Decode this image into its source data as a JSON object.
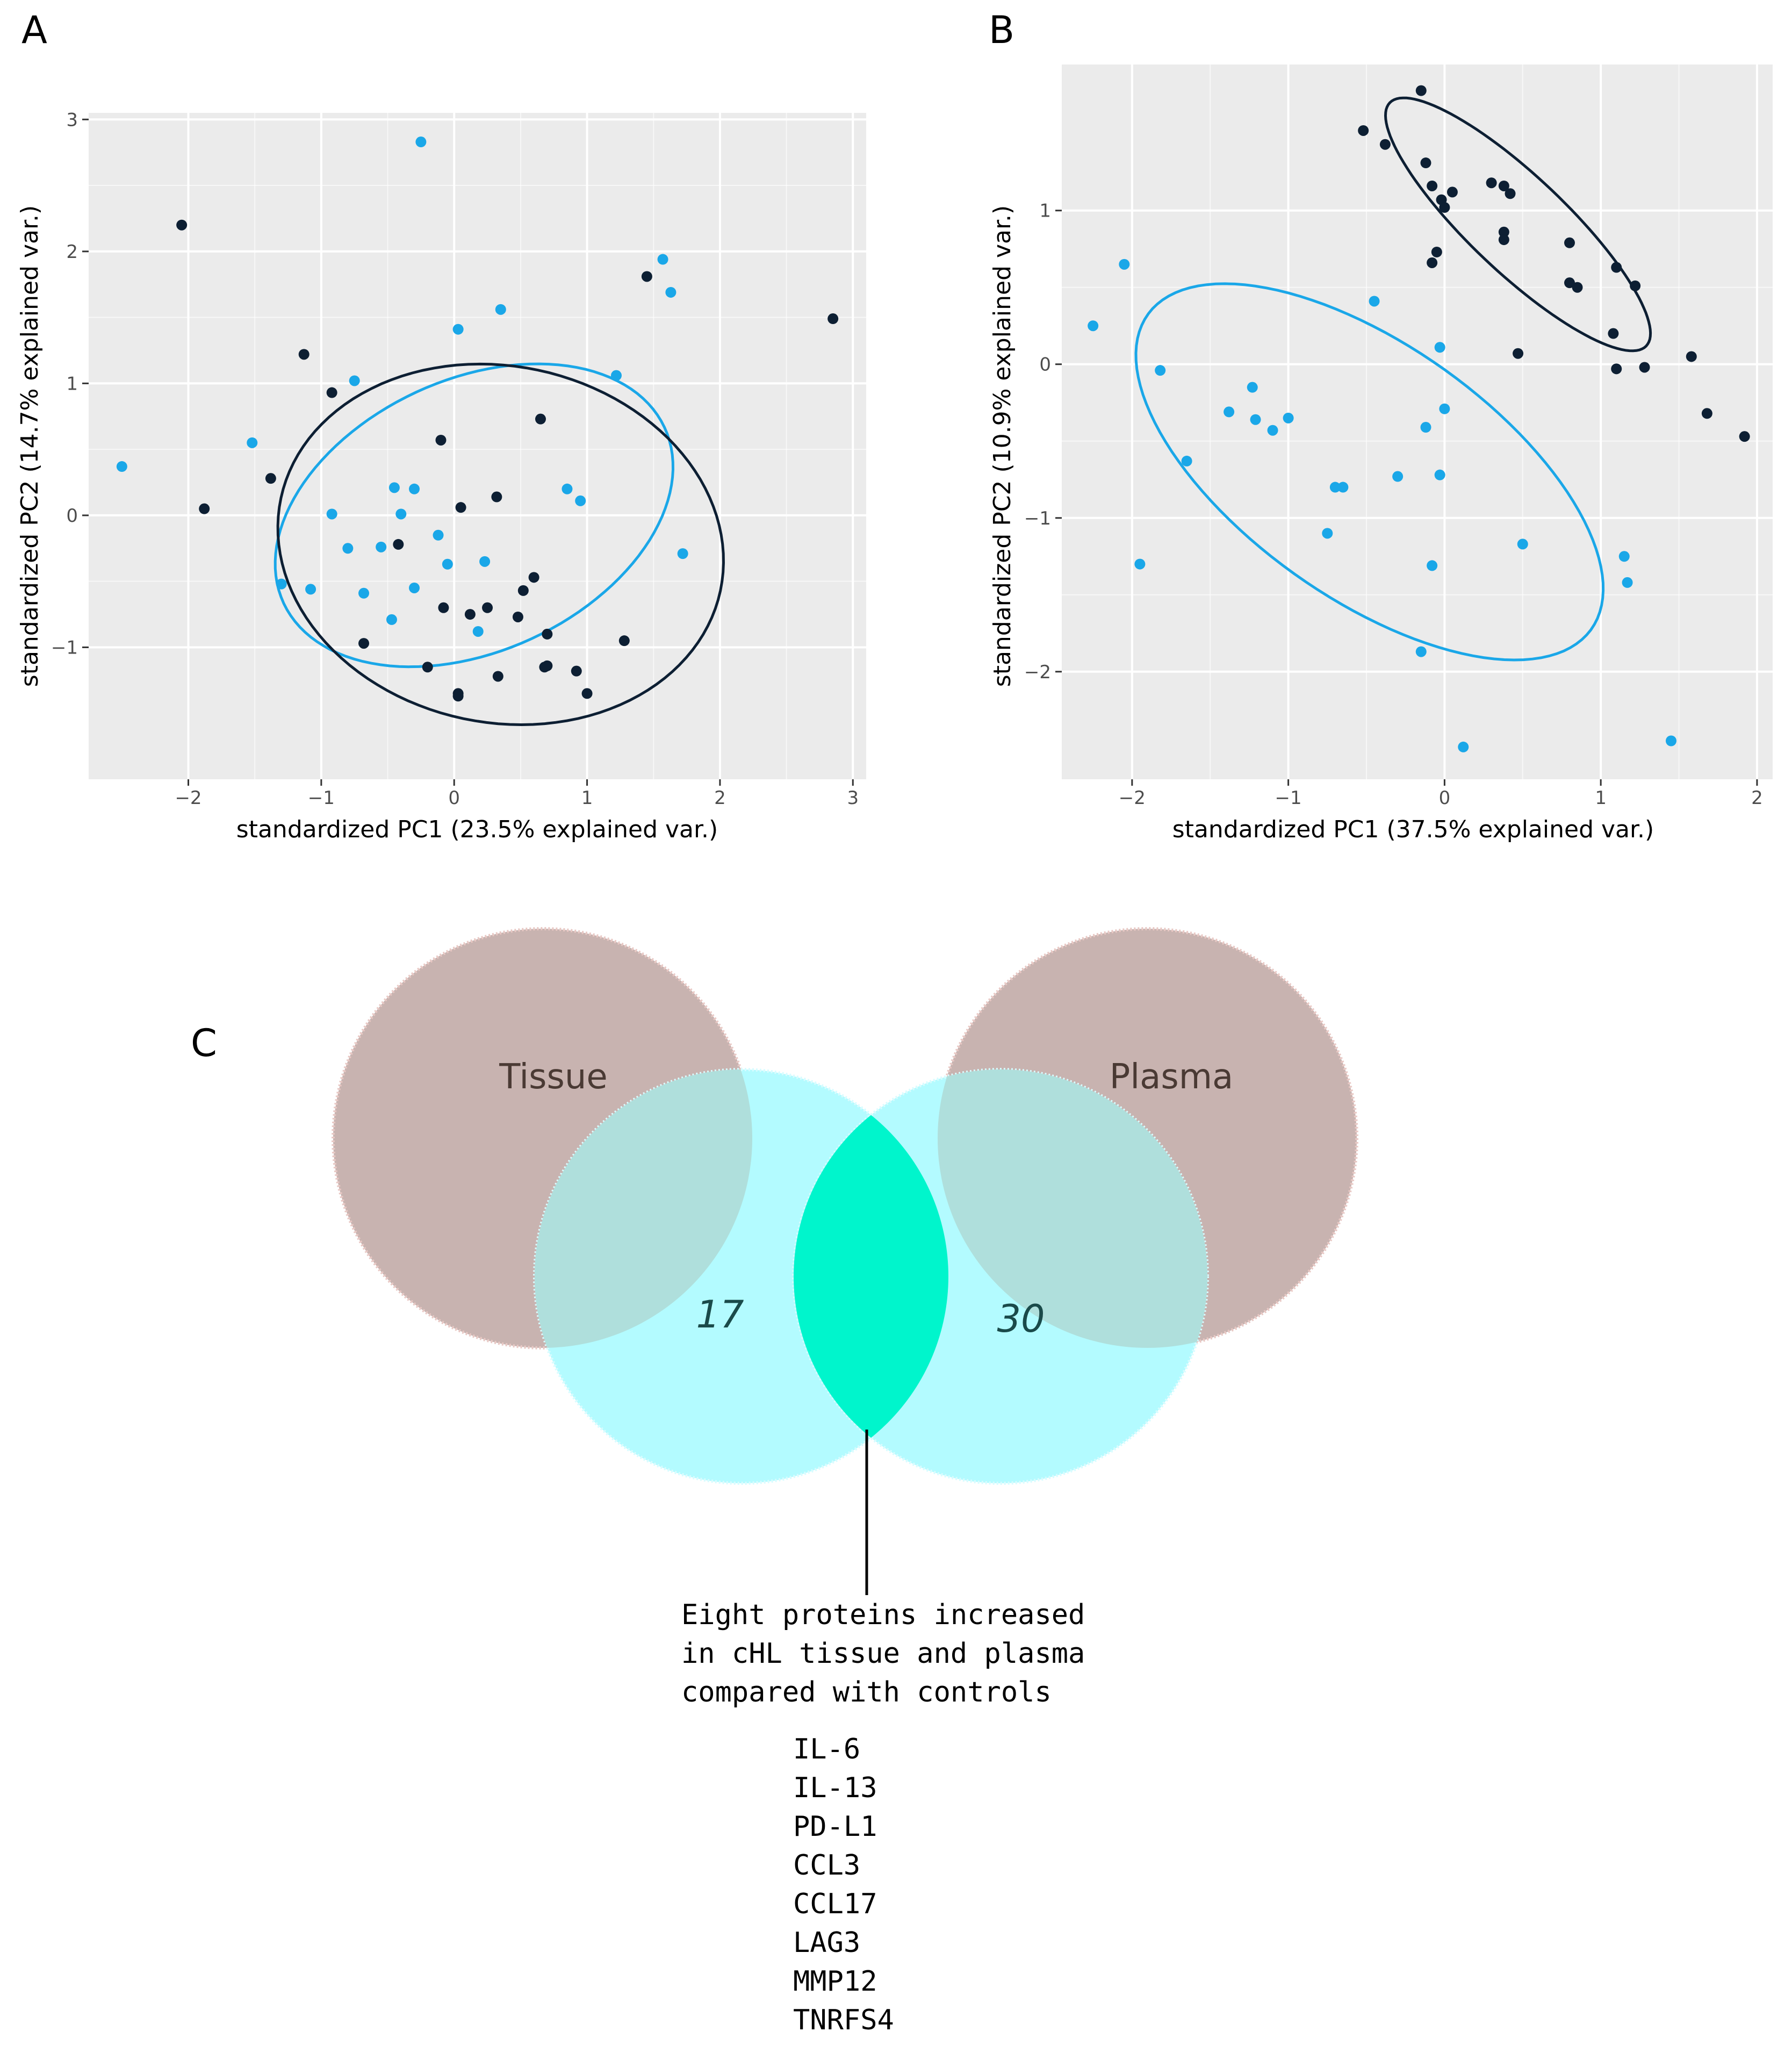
{
  "colors": {
    "panel_bg": "#ebebeb",
    "grid": "#ffffff",
    "group_dark": "#0d1f33",
    "group_light": "#1aa7e8",
    "venn_brown": "#c8b3b0",
    "venn_cyan": "#b3fbff",
    "venn_center": "#00f5cc",
    "venn_overlap": "#afdfdc"
  },
  "chart_data": [
    {
      "panel": "A",
      "type": "scatter",
      "xlabel": "standardized PC1 (23.5% explained var.)",
      "ylabel": "standardized PC2 (14.7% explained var.)",
      "xlim": [
        -2.75,
        3.1
      ],
      "ylim": [
        -2.0,
        3.05
      ],
      "xticks": [
        -2,
        -1,
        0,
        1,
        2,
        3
      ],
      "xtick_labels": [
        "−2",
        "−1",
        "0",
        "1",
        "2",
        "3"
      ],
      "yticks": [
        -1,
        0,
        1,
        2,
        3
      ],
      "ytick_labels": [
        "−1",
        "0",
        "1",
        "2",
        "3"
      ],
      "series": [
        {
          "name": "dark",
          "color": "#0d1f33",
          "points": [
            [
              -2.05,
              2.2
            ],
            [
              -1.88,
              0.05
            ],
            [
              -1.38,
              0.28
            ],
            [
              -1.13,
              1.22
            ],
            [
              -0.92,
              0.93
            ],
            [
              -0.68,
              -0.97
            ],
            [
              -0.42,
              -0.22
            ],
            [
              -0.2,
              -1.15
            ],
            [
              -0.1,
              0.57
            ],
            [
              -0.08,
              -0.7
            ],
            [
              0.05,
              0.06
            ],
            [
              0.03,
              -1.35
            ],
            [
              0.03,
              -1.37
            ],
            [
              0.12,
              -0.75
            ],
            [
              0.25,
              -0.7
            ],
            [
              0.32,
              0.14
            ],
            [
              0.33,
              -1.22
            ],
            [
              0.48,
              -0.77
            ],
            [
              0.52,
              -0.57
            ],
            [
              0.6,
              -0.47
            ],
            [
              0.65,
              0.73
            ],
            [
              0.68,
              -1.15
            ],
            [
              0.7,
              -1.14
            ],
            [
              0.7,
              -0.9
            ],
            [
              0.92,
              -1.18
            ],
            [
              1.0,
              -1.35
            ],
            [
              1.28,
              -0.95
            ],
            [
              1.45,
              1.81
            ],
            [
              2.85,
              1.49
            ]
          ]
        },
        {
          "name": "light",
          "color": "#1aa7e8",
          "points": [
            [
              -2.5,
              0.37
            ],
            [
              -1.52,
              0.55
            ],
            [
              -1.3,
              -0.52
            ],
            [
              -1.08,
              -0.56
            ],
            [
              -0.92,
              0.01
            ],
            [
              -0.8,
              -0.25
            ],
            [
              -0.75,
              1.02
            ],
            [
              -0.68,
              -0.59
            ],
            [
              -0.55,
              -0.24
            ],
            [
              -0.47,
              -0.79
            ],
            [
              -0.45,
              0.21
            ],
            [
              -0.4,
              0.01
            ],
            [
              -0.3,
              0.2
            ],
            [
              -0.3,
              -0.55
            ],
            [
              -0.25,
              2.83
            ],
            [
              -0.12,
              -0.15
            ],
            [
              -0.05,
              -0.37
            ],
            [
              0.03,
              1.41
            ],
            [
              0.18,
              -0.88
            ],
            [
              0.23,
              -0.35
            ],
            [
              0.35,
              1.56
            ],
            [
              0.85,
              0.2
            ],
            [
              0.95,
              0.11
            ],
            [
              1.22,
              1.06
            ],
            [
              1.57,
              1.94
            ],
            [
              1.63,
              1.69
            ],
            [
              1.72,
              -0.29
            ]
          ]
        }
      ],
      "ellipses": [
        {
          "name": "light",
          "color": "#1aa7e8",
          "center": [
            0.15,
            0.0
          ],
          "a": 1.58,
          "b": 1.03,
          "angle_deg": 25
        },
        {
          "name": "dark",
          "color": "#0d1f33",
          "center": [
            0.35,
            -0.22
          ],
          "a": 1.69,
          "b": 1.35,
          "angle_deg": -12
        }
      ]
    },
    {
      "panel": "B",
      "type": "scatter",
      "xlabel": "standardized PC1 (37.5% explained var.)",
      "ylabel": "standardized PC2 (10.9% explained var.)",
      "xlim": [
        -2.45,
        2.1
      ],
      "ylim": [
        -2.7,
        1.95
      ],
      "xticks": [
        -2,
        -1,
        0,
        1,
        2
      ],
      "xtick_labels": [
        "−2",
        "−1",
        "0",
        "1",
        "2"
      ],
      "yticks": [
        -2,
        -1,
        0,
        1
      ],
      "ytick_labels": [
        "−2",
        "−1",
        "0",
        "1"
      ],
      "series": [
        {
          "name": "dark",
          "color": "#0d1f33",
          "points": [
            [
              -0.52,
              1.52
            ],
            [
              -0.38,
              1.43
            ],
            [
              -0.15,
              1.78
            ],
            [
              -0.12,
              1.31
            ],
            [
              -0.08,
              1.16
            ],
            [
              -0.08,
              0.66
            ],
            [
              -0.05,
              0.73
            ],
            [
              -0.02,
              1.07
            ],
            [
              0.0,
              1.02
            ],
            [
              0.05,
              1.12
            ],
            [
              0.3,
              1.18
            ],
            [
              0.38,
              0.86
            ],
            [
              0.38,
              0.81
            ],
            [
              0.38,
              1.16
            ],
            [
              0.42,
              1.11
            ],
            [
              0.47,
              0.07
            ],
            [
              0.8,
              0.79
            ],
            [
              0.8,
              0.53
            ],
            [
              0.85,
              0.5
            ],
            [
              1.08,
              0.2
            ],
            [
              1.1,
              0.63
            ],
            [
              1.1,
              -0.03
            ],
            [
              1.22,
              0.51
            ],
            [
              1.28,
              -0.02
            ],
            [
              1.58,
              0.05
            ],
            [
              1.68,
              -0.32
            ],
            [
              1.92,
              -0.47
            ]
          ]
        },
        {
          "name": "light",
          "color": "#1aa7e8",
          "points": [
            [
              -2.25,
              0.25
            ],
            [
              -2.05,
              0.65
            ],
            [
              -1.95,
              -1.3
            ],
            [
              -1.82,
              -0.04
            ],
            [
              -1.65,
              -0.63
            ],
            [
              -1.38,
              -0.31
            ],
            [
              -1.23,
              -0.15
            ],
            [
              -1.21,
              -0.36
            ],
            [
              -1.1,
              -0.43
            ],
            [
              -1.0,
              -0.35
            ],
            [
              -0.75,
              -1.1
            ],
            [
              -0.7,
              -0.8
            ],
            [
              -0.65,
              -0.8
            ],
            [
              -0.45,
              0.41
            ],
            [
              -0.3,
              -0.73
            ],
            [
              -0.15,
              -1.87
            ],
            [
              -0.12,
              -0.41
            ],
            [
              -0.08,
              -1.31
            ],
            [
              -0.03,
              0.11
            ],
            [
              -0.03,
              -0.72
            ],
            [
              0.0,
              -0.29
            ],
            [
              0.12,
              -2.49
            ],
            [
              0.5,
              -1.17
            ],
            [
              1.15,
              -1.25
            ],
            [
              1.17,
              -1.42
            ],
            [
              1.45,
              -2.45
            ]
          ]
        }
      ],
      "ellipses": [
        {
          "name": "light",
          "color": "#1aa7e8",
          "center": [
            -0.48,
            -0.7
          ],
          "a": 1.75,
          "b": 0.82,
          "angle_deg": -36
        },
        {
          "name": "dark",
          "color": "#0d1f33",
          "center": [
            0.47,
            0.91
          ],
          "a": 1.14,
          "b": 0.31,
          "angle_deg": -44
        }
      ]
    }
  ],
  "panels": {
    "a": "A",
    "b": "B",
    "c": "C"
  },
  "venn": {
    "tissue_label": "Tissue",
    "plasma_label": "Plasma",
    "count_left": "17",
    "count_right": "30",
    "callout_lines": [
      "Eight proteins increased",
      "in cHL tissue and plasma",
      "compared with controls"
    ],
    "proteins": [
      "IL-6",
      "IL-13",
      "PD-L1",
      "CCL3",
      "CCL17",
      "LAG3",
      "MMP12",
      "TNRFS4"
    ]
  }
}
